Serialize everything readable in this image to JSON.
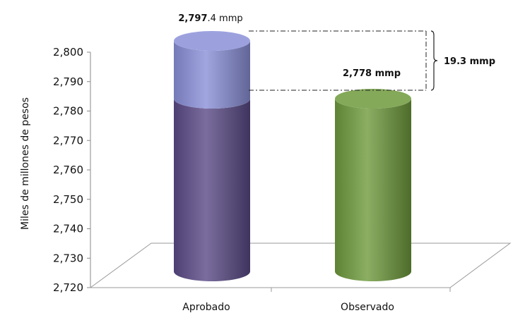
{
  "chart_data": {
    "type": "bar",
    "title": "",
    "ylabel": "Miles de millones de pesos",
    "xlabel": "",
    "ylim": [
      2720,
      2800
    ],
    "yticks": [
      "2,720",
      "2,730",
      "2,740",
      "2,750",
      "2,760",
      "2,770",
      "2,780",
      "2,790",
      "2,800"
    ],
    "categories": [
      "Aprobado",
      "Observado"
    ],
    "bars": [
      {
        "category": "Aprobado",
        "value": 2797.4,
        "label_bold": "2,797",
        "label_rest": ".4 mmp",
        "segments": [
          {
            "from": 2720,
            "to": 2778,
            "color": "#5a4a86"
          },
          {
            "from": 2778,
            "to": 2797.4,
            "color": "#8a90d8"
          }
        ]
      },
      {
        "category": "Observado",
        "value": 2778,
        "label_bold": "2,778 mmp",
        "label_rest": "",
        "segments": [
          {
            "from": 2720,
            "to": 2778,
            "color": "#6e9a3c"
          }
        ]
      }
    ],
    "gap_annotation": {
      "value": 19.3,
      "label": "19.3 mmp"
    },
    "grid": false,
    "legend": "none"
  }
}
